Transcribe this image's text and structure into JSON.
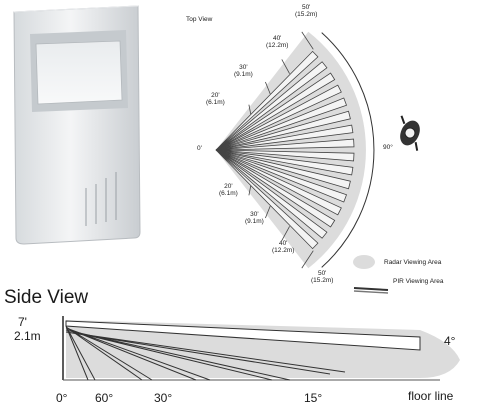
{
  "top_view": {
    "title": "Top View",
    "origin_label": "0'",
    "coverage_angle": "90°",
    "range_marks_upper": [
      {
        "ft": "50'",
        "m": "(15.2m)"
      },
      {
        "ft": "40'",
        "m": "(12.2m)"
      },
      {
        "ft": "30'",
        "m": "(9.1m)"
      },
      {
        "ft": "20'",
        "m": "(6.1m)"
      }
    ],
    "range_marks_lower": [
      {
        "ft": "20'",
        "m": "(6.1m)"
      },
      {
        "ft": "30'",
        "m": "(9.1m)"
      },
      {
        "ft": "40'",
        "m": "(12.2m)"
      },
      {
        "ft": "50'",
        "m": "(15.2m)"
      }
    ],
    "legend": [
      {
        "label": "Radar Viewing Area",
        "color": "#dcdcdc"
      },
      {
        "label": "PIR Viewing Area",
        "color": "#5a5a5a"
      }
    ]
  },
  "side_view": {
    "title": "Side View",
    "height_ft": "7'",
    "height_m": "2.1m",
    "angle_right": "4°",
    "floor_angles": [
      "0°",
      "60°",
      "30°",
      "15°"
    ],
    "floor_label": "floor line"
  },
  "colors": {
    "radar_area": "#dcdcdc",
    "pir_beam": "#555555",
    "ink": "#1a1a1a"
  }
}
